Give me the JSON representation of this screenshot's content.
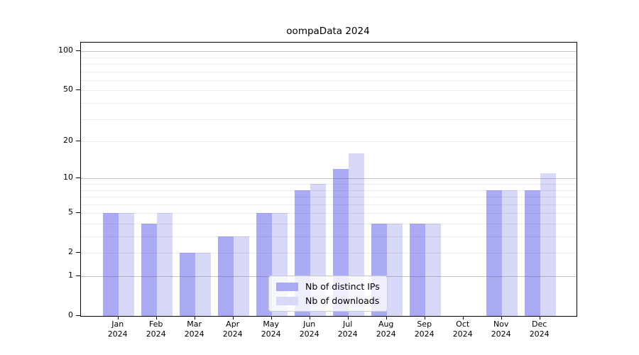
{
  "title": "oompaData 2024",
  "chart_data": {
    "type": "bar",
    "title": "oompaData 2024",
    "categories": [
      "Jan",
      "Feb",
      "Mar",
      "Apr",
      "May",
      "Jun",
      "Jul",
      "Aug",
      "Sep",
      "Oct",
      "Nov",
      "Dec"
    ],
    "category_year": "2024",
    "series": [
      {
        "name": "Nb of distinct IPs",
        "color": "#aaaaf5",
        "values": [
          5,
          4,
          2,
          3,
          5,
          8,
          12,
          4,
          4,
          0,
          8,
          8
        ]
      },
      {
        "name": "Nb of downloads",
        "color": "#d8d8f8",
        "values": [
          5,
          5,
          2,
          3,
          5,
          9,
          16,
          4,
          4,
          0,
          8,
          11
        ]
      }
    ],
    "xlabel": "",
    "ylabel": "",
    "yscale": "log1p",
    "ylim": [
      0,
      116.5
    ],
    "ytick_labels": [
      0,
      1,
      2,
      5,
      10,
      20,
      50,
      100
    ],
    "grid_major": [
      1,
      10,
      100
    ],
    "grid_minor": [
      2,
      3,
      4,
      5,
      6,
      7,
      8,
      9,
      20,
      30,
      40,
      50,
      60,
      70,
      80,
      90
    ],
    "grid": "on",
    "legend_position": "lower center"
  },
  "legend": {
    "items": [
      {
        "label": "Nb of distinct IPs",
        "color": "#aaaaf5"
      },
      {
        "label": "Nb of downloads",
        "color": "#d8d8f8"
      }
    ]
  }
}
